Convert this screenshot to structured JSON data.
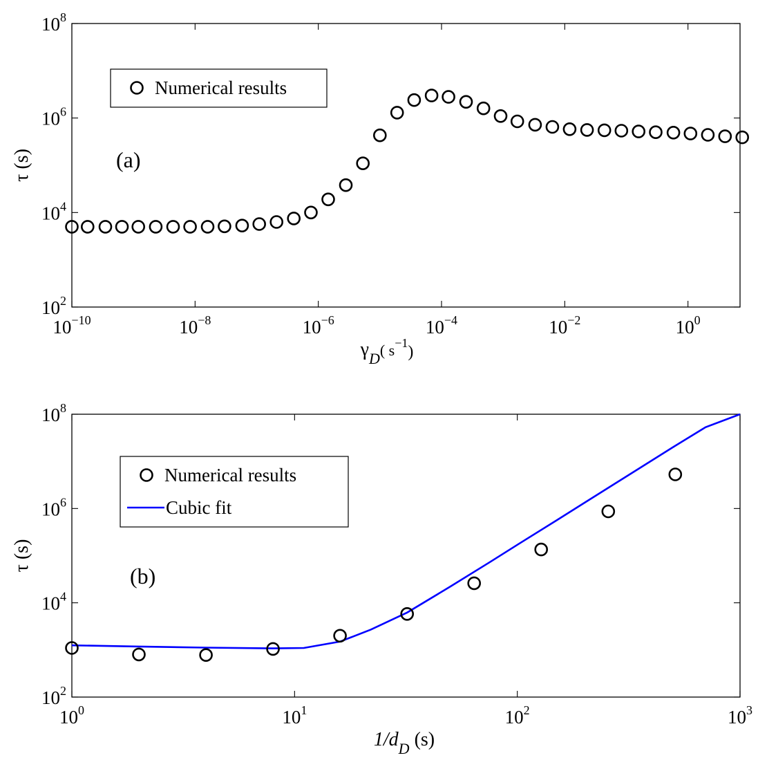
{
  "chart_data": [
    {
      "panel": "a",
      "type": "scatter",
      "x_scale": "log",
      "y_scale": "log",
      "xlim": [
        1e-10,
        7
      ],
      "ylim": [
        100,
        100000000
      ],
      "x_ticks": [
        {
          "base": "10",
          "exp": "−10",
          "value": 1e-10
        },
        {
          "base": "10",
          "exp": "−8",
          "value": 1e-08
        },
        {
          "base": "10",
          "exp": "−6",
          "value": 1e-06
        },
        {
          "base": "10",
          "exp": "−4",
          "value": 0.0001
        },
        {
          "base": "10",
          "exp": "−2",
          "value": 0.01
        },
        {
          "base": "10",
          "exp": "0",
          "value": 1
        }
      ],
      "y_ticks": [
        {
          "base": "10",
          "exp": "2",
          "value": 100
        },
        {
          "base": "10",
          "exp": "4",
          "value": 10000
        },
        {
          "base": "10",
          "exp": "6",
          "value": 1000000
        },
        {
          "base": "10",
          "exp": "8",
          "value": 100000000
        }
      ],
      "xlabel": {
        "main": "γ",
        "sub": "D",
        "units": "( s",
        "units_exp": "−1",
        "close": ")"
      },
      "ylabel": "τ (s)",
      "annotation": "(a)",
      "legend": {
        "placement": "top-left",
        "entries": [
          "Numerical results"
        ]
      },
      "series": [
        {
          "name": "Numerical results",
          "marker": "circle",
          "x": [
            1e-10,
            1.8e-10,
            3.5e-10,
            6.5e-10,
            1.2e-09,
            2.3e-09,
            4.4e-09,
            8.3e-09,
            1.6e-08,
            3e-08,
            5.8e-08,
            1.1e-07,
            2.1e-07,
            4e-07,
            7.6e-07,
            1.45e-06,
            2.8e-06,
            5.3e-06,
            1e-05,
            1.9e-05,
            3.6e-05,
            6.9e-05,
            0.00013,
            0.00025,
            0.00048,
            0.00091,
            0.0017,
            0.0033,
            0.0063,
            0.012,
            0.023,
            0.044,
            0.083,
            0.158,
            0.3,
            0.58,
            1.1,
            2.1,
            4,
            7.6
          ],
          "y": [
            5000,
            5000,
            5000,
            5000,
            5000,
            5000,
            5000,
            5000,
            5000,
            5100,
            5300,
            5700,
            6300,
            7500,
            10000,
            19000,
            38000,
            110000,
            430000,
            1300000,
            2400000,
            3000000,
            2800000,
            2200000,
            1600000,
            1100000,
            850000,
            720000,
            650000,
            580000,
            560000,
            550000,
            540000,
            520000,
            500000,
            490000,
            470000,
            440000,
            410000,
            390000
          ]
        }
      ]
    },
    {
      "panel": "b",
      "type": "scatter",
      "x_scale": "log",
      "y_scale": "log",
      "xlim": [
        1,
        1000
      ],
      "ylim": [
        100,
        100000000
      ],
      "x_ticks": [
        {
          "base": "10",
          "exp": "0",
          "value": 1
        },
        {
          "base": "10",
          "exp": "1",
          "value": 10
        },
        {
          "base": "10",
          "exp": "2",
          "value": 100
        },
        {
          "base": "10",
          "exp": "3",
          "value": 1000
        }
      ],
      "y_ticks": [
        {
          "base": "10",
          "exp": "2",
          "value": 100
        },
        {
          "base": "10",
          "exp": "4",
          "value": 10000
        },
        {
          "base": "10",
          "exp": "6",
          "value": 1000000
        },
        {
          "base": "10",
          "exp": "8",
          "value": 100000000
        }
      ],
      "xlabel": {
        "main": "1/d",
        "sub": "D",
        "units": " (s)"
      },
      "ylabel": "τ (s)",
      "annotation": "(b)",
      "legend": {
        "placement": "top-left",
        "entries": [
          "Numerical results",
          "Cubic fit"
        ]
      },
      "series": [
        {
          "name": "Numerical results",
          "marker": "circle",
          "x": [
            1,
            2,
            4,
            8,
            16,
            32,
            64,
            128,
            256,
            512
          ],
          "y": [
            1100,
            800,
            780,
            1050,
            2000,
            5800,
            26000,
            135000,
            870000,
            5300000
          ]
        },
        {
          "name": "Cubic fit",
          "type": "line",
          "color": "#0000ff",
          "x": [
            1,
            2,
            4,
            8,
            11,
            16,
            22,
            32,
            50,
            75,
            100,
            150,
            200,
            300,
            500,
            700,
            1000
          ],
          "y": [
            1250,
            1180,
            1120,
            1080,
            1100,
            1500,
            2700,
            6200,
            22000,
            72000,
            170000,
            560000,
            1320000,
            4400000,
            20000000,
            53000000,
            155000000
          ]
        }
      ]
    }
  ]
}
